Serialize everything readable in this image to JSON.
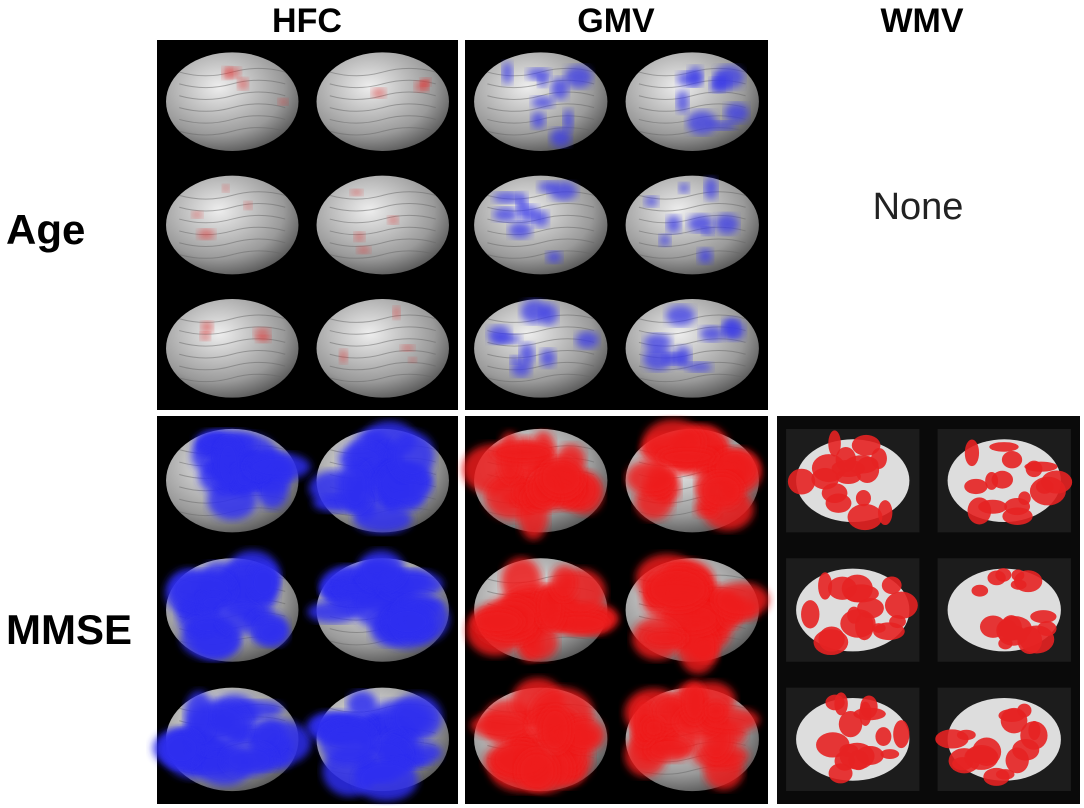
{
  "column_headers": [
    "HFC",
    "GMV",
    "WMV"
  ],
  "row_labels": [
    "Age",
    "MMSE"
  ],
  "no_result_label": "None"
}
